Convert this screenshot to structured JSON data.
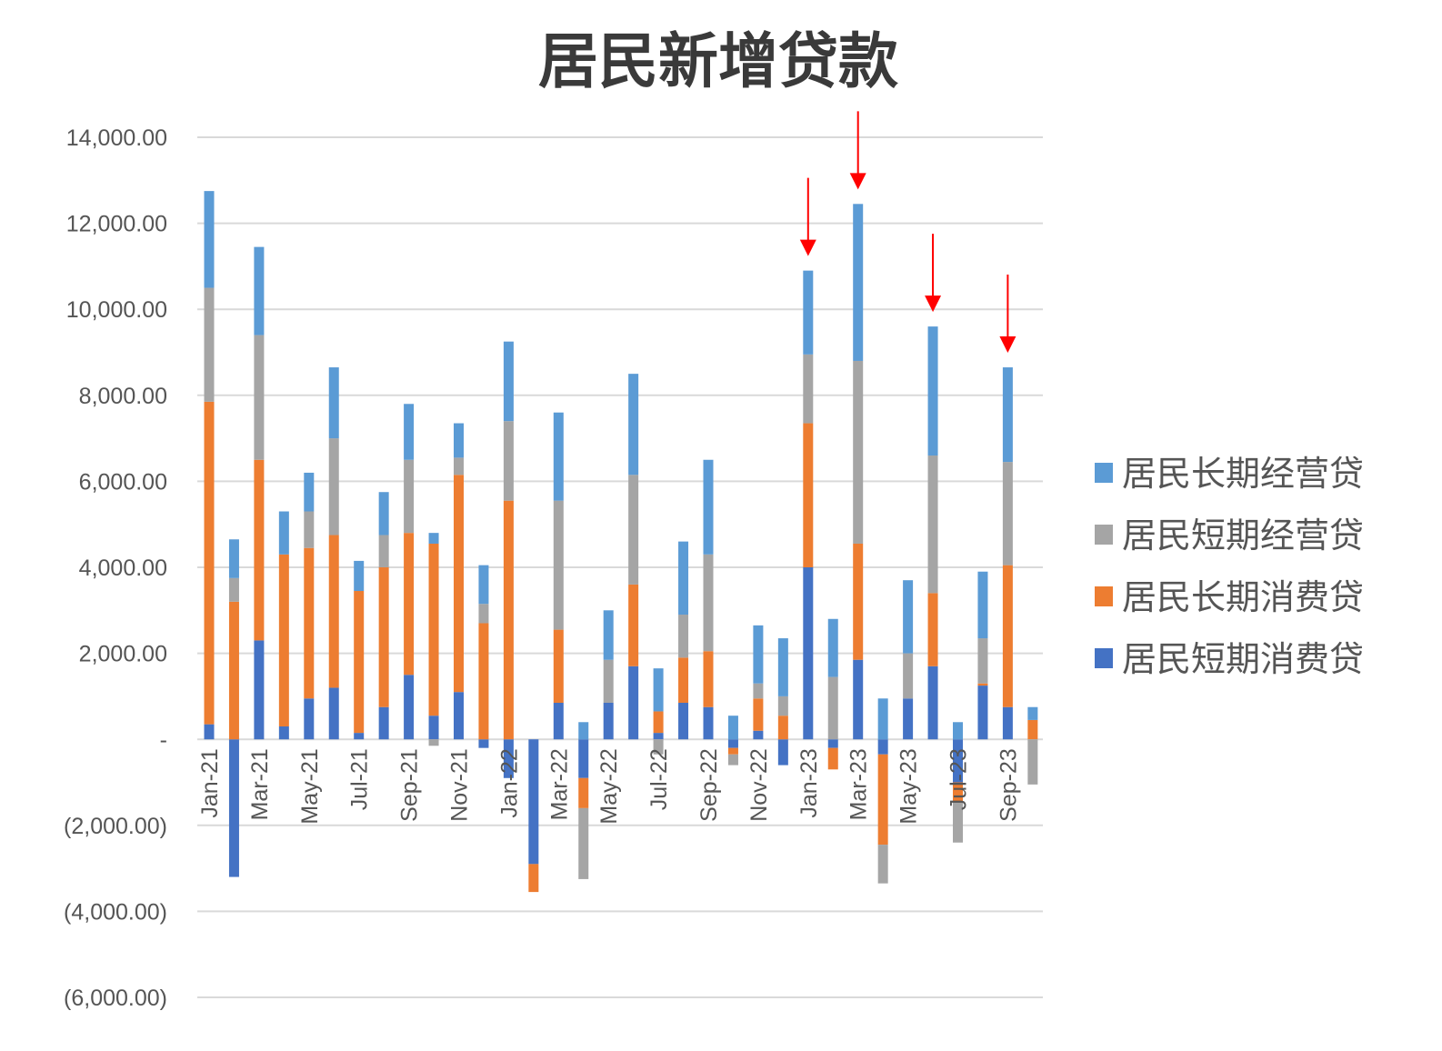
{
  "chart_data": {
    "type": "bar",
    "stacked": true,
    "title": "居民新增贷款",
    "xlabel": "",
    "ylabel": "",
    "ylim": [
      -6000,
      14000
    ],
    "yticks": [
      14000,
      12000,
      10000,
      8000,
      6000,
      4000,
      2000,
      0,
      -2000,
      -4000,
      -6000
    ],
    "ytick_labels": [
      "14,000.00",
      "12,000.00",
      "10,000.00",
      "8,000.00",
      "6,000.00",
      "4,000.00",
      "2,000.00",
      "-",
      "(2,000.00)",
      "(4,000.00)",
      "(6,000.00)"
    ],
    "grid": true,
    "legend_position": "right",
    "categories": [
      "Jan-21",
      "Feb-21",
      "Mar-21",
      "Apr-21",
      "May-21",
      "Jun-21",
      "Jul-21",
      "Aug-21",
      "Sep-21",
      "Oct-21",
      "Nov-21",
      "Dec-21",
      "Jan-22",
      "Feb-22",
      "Mar-22",
      "Apr-22",
      "May-22",
      "Jun-22",
      "Jul-22",
      "Aug-22",
      "Sep-22",
      "Oct-22",
      "Nov-22",
      "Dec-22",
      "Jan-23",
      "Feb-23",
      "Mar-23",
      "Apr-23",
      "May-23",
      "Jun-23",
      "Jul-23",
      "Aug-23",
      "Sep-23",
      "Oct-23"
    ],
    "x_labeled": [
      "Jan-21",
      "Mar-21",
      "May-21",
      "Jul-21",
      "Sep-21",
      "Nov-21",
      "Jan-22",
      "Mar-22",
      "May-22",
      "Jul-22",
      "Sep-22",
      "Nov-22",
      "Jan-23",
      "Mar-23",
      "May-23",
      "Jul-23",
      "Sep-23"
    ],
    "series": [
      {
        "name": "居民短期消费贷",
        "color": "#4472c4",
        "values": [
          350,
          -3200,
          2300,
          300,
          950,
          1200,
          150,
          750,
          1500,
          550,
          1100,
          -200,
          -900,
          -2900,
          850,
          -900,
          850,
          1700,
          150,
          850,
          750,
          -200,
          200,
          -600,
          4000,
          -200,
          1850,
          -350,
          950,
          1700,
          -1000,
          1250,
          750,
          0
        ]
      },
      {
        "name": "居民长期消费贷",
        "color": "#ed7d31",
        "values": [
          7500,
          3200,
          4200,
          4000,
          3500,
          3550,
          3300,
          3250,
          3300,
          4000,
          5050,
          2700,
          5550,
          -650,
          1700,
          -700,
          0,
          1900,
          500,
          1050,
          1300,
          -150,
          750,
          550,
          3350,
          -500,
          2700,
          -2100,
          0,
          1700,
          -450,
          50,
          3300,
          450
        ]
      },
      {
        "name": "居民短期经营贷",
        "color": "#a5a5a5",
        "values": [
          2650,
          550,
          2900,
          0,
          850,
          2250,
          0,
          750,
          1700,
          -150,
          400,
          450,
          1850,
          0,
          3000,
          -1650,
          1000,
          2550,
          -350,
          1000,
          2250,
          -250,
          350,
          450,
          1600,
          1450,
          4250,
          -900,
          1050,
          3200,
          -950,
          1050,
          2400,
          -1050
        ]
      },
      {
        "name": "居民长期经营贷",
        "color": "#5b9bd5",
        "values": [
          2250,
          900,
          2050,
          1000,
          900,
          1650,
          700,
          1000,
          1300,
          250,
          800,
          900,
          1850,
          0,
          2050,
          400,
          1150,
          2350,
          1000,
          1700,
          2200,
          550,
          1350,
          1350,
          1950,
          1350,
          3650,
          950,
          1700,
          3000,
          400,
          1550,
          2200,
          300
        ]
      }
    ],
    "annotations": [
      {
        "type": "arrow",
        "color": "#ff0000",
        "category": "Jan-23"
      },
      {
        "type": "arrow",
        "color": "#ff0000",
        "category": "Mar-23"
      },
      {
        "type": "arrow",
        "color": "#ff0000",
        "category": "Jun-23"
      },
      {
        "type": "arrow",
        "color": "#ff0000",
        "category": "Sep-23"
      }
    ]
  }
}
